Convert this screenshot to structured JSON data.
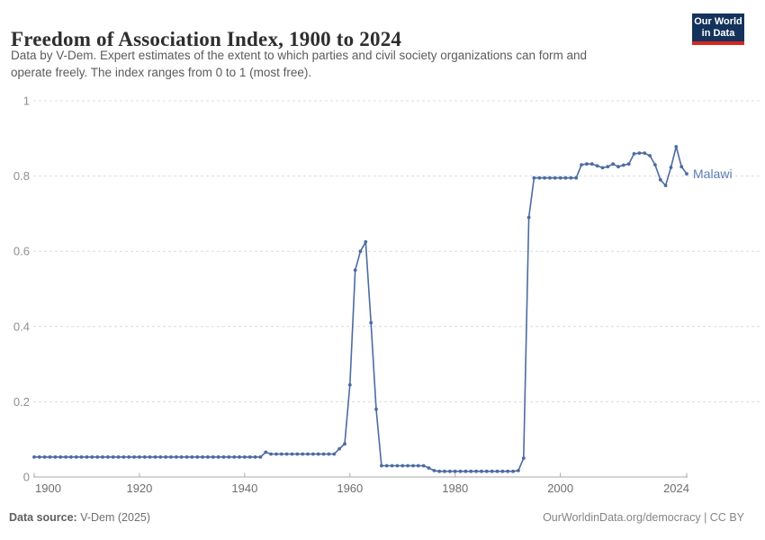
{
  "header": {
    "title": "Freedom of Association Index, 1900 to 2024",
    "subtitle_line1": "Data by V-Dem. Expert estimates of the extent to which parties and civil society organizations can form and",
    "subtitle_line2": "operate freely. The index ranges from 0 to 1 (most free).",
    "logo": {
      "line1": "Our World",
      "line2": "in Data"
    }
  },
  "footer": {
    "source_label": "Data source:",
    "source_value": " V-Dem (2025)",
    "right_text": "OurWorldinData.org/democracy | CC BY"
  },
  "colors": {
    "line": "#4c6ba3",
    "entity_label": "#5b7db4",
    "logo_bg": "#14335c",
    "logo_stripe": "#d7271d",
    "logo_text": "#ffffff",
    "grid": "#dcdcdc",
    "axis": "#a9a9a9",
    "x_tick_label": "#6e6e6e",
    "y_tick_label": "#8f8f8f"
  },
  "chart_data": {
    "type": "line",
    "title": "Freedom of Association Index, 1900 to 2024",
    "xlabel": "",
    "ylabel": "",
    "xlim": [
      1900,
      2024
    ],
    "ylim": [
      0,
      1
    ],
    "xticks": [
      1900,
      1920,
      1940,
      1960,
      1980,
      2000,
      2024
    ],
    "yticks": [
      0,
      0.2,
      0.4,
      0.6,
      0.8,
      1
    ],
    "ytick_labels": [
      "0",
      "0.2",
      "0.4",
      "0.6",
      "0.8",
      "1"
    ],
    "grid": "horizontal-dashed",
    "legend_position": "label-at-line-end",
    "series": [
      {
        "name": "Malawi",
        "color": "#4c6ba3",
        "points": [
          [
            1900,
            0.053
          ],
          [
            1901,
            0.053
          ],
          [
            1902,
            0.053
          ],
          [
            1903,
            0.053
          ],
          [
            1904,
            0.053
          ],
          [
            1905,
            0.053
          ],
          [
            1906,
            0.053
          ],
          [
            1907,
            0.053
          ],
          [
            1908,
            0.053
          ],
          [
            1909,
            0.053
          ],
          [
            1910,
            0.053
          ],
          [
            1911,
            0.053
          ],
          [
            1912,
            0.053
          ],
          [
            1913,
            0.053
          ],
          [
            1914,
            0.053
          ],
          [
            1915,
            0.053
          ],
          [
            1916,
            0.053
          ],
          [
            1917,
            0.053
          ],
          [
            1918,
            0.053
          ],
          [
            1919,
            0.053
          ],
          [
            1920,
            0.053
          ],
          [
            1921,
            0.053
          ],
          [
            1922,
            0.053
          ],
          [
            1923,
            0.053
          ],
          [
            1924,
            0.053
          ],
          [
            1925,
            0.053
          ],
          [
            1926,
            0.053
          ],
          [
            1927,
            0.053
          ],
          [
            1928,
            0.053
          ],
          [
            1929,
            0.053
          ],
          [
            1930,
            0.053
          ],
          [
            1931,
            0.053
          ],
          [
            1932,
            0.053
          ],
          [
            1933,
            0.053
          ],
          [
            1934,
            0.053
          ],
          [
            1935,
            0.053
          ],
          [
            1936,
            0.053
          ],
          [
            1937,
            0.053
          ],
          [
            1938,
            0.053
          ],
          [
            1939,
            0.053
          ],
          [
            1940,
            0.053
          ],
          [
            1941,
            0.053
          ],
          [
            1942,
            0.053
          ],
          [
            1943,
            0.053
          ],
          [
            1944,
            0.066
          ],
          [
            1945,
            0.061
          ],
          [
            1946,
            0.061
          ],
          [
            1947,
            0.061
          ],
          [
            1948,
            0.061
          ],
          [
            1949,
            0.061
          ],
          [
            1950,
            0.061
          ],
          [
            1951,
            0.061
          ],
          [
            1952,
            0.061
          ],
          [
            1953,
            0.061
          ],
          [
            1954,
            0.061
          ],
          [
            1955,
            0.061
          ],
          [
            1956,
            0.061
          ],
          [
            1957,
            0.061
          ],
          [
            1958,
            0.075
          ],
          [
            1959,
            0.088
          ],
          [
            1960,
            0.245
          ],
          [
            1961,
            0.55
          ],
          [
            1962,
            0.6
          ],
          [
            1963,
            0.625
          ],
          [
            1964,
            0.41
          ],
          [
            1965,
            0.18
          ],
          [
            1966,
            0.03
          ],
          [
            1967,
            0.03
          ],
          [
            1968,
            0.03
          ],
          [
            1969,
            0.03
          ],
          [
            1970,
            0.03
          ],
          [
            1971,
            0.03
          ],
          [
            1972,
            0.03
          ],
          [
            1973,
            0.03
          ],
          [
            1974,
            0.03
          ],
          [
            1975,
            0.024
          ],
          [
            1976,
            0.017
          ],
          [
            1977,
            0.015
          ],
          [
            1978,
            0.015
          ],
          [
            1979,
            0.015
          ],
          [
            1980,
            0.015
          ],
          [
            1981,
            0.015
          ],
          [
            1982,
            0.015
          ],
          [
            1983,
            0.015
          ],
          [
            1984,
            0.015
          ],
          [
            1985,
            0.015
          ],
          [
            1986,
            0.015
          ],
          [
            1987,
            0.015
          ],
          [
            1988,
            0.015
          ],
          [
            1989,
            0.015
          ],
          [
            1990,
            0.015
          ],
          [
            1991,
            0.015
          ],
          [
            1992,
            0.017
          ],
          [
            1993,
            0.05
          ],
          [
            1994,
            0.69
          ],
          [
            1995,
            0.795
          ],
          [
            1996,
            0.795
          ],
          [
            1997,
            0.795
          ],
          [
            1998,
            0.795
          ],
          [
            1999,
            0.795
          ],
          [
            2000,
            0.795
          ],
          [
            2001,
            0.795
          ],
          [
            2002,
            0.795
          ],
          [
            2003,
            0.795
          ],
          [
            2004,
            0.83
          ],
          [
            2005,
            0.832
          ],
          [
            2006,
            0.832
          ],
          [
            2007,
            0.827
          ],
          [
            2008,
            0.822
          ],
          [
            2009,
            0.825
          ],
          [
            2010,
            0.832
          ],
          [
            2011,
            0.825
          ],
          [
            2012,
            0.829
          ],
          [
            2013,
            0.832
          ],
          [
            2014,
            0.859
          ],
          [
            2015,
            0.861
          ],
          [
            2016,
            0.861
          ],
          [
            2017,
            0.854
          ],
          [
            2018,
            0.83
          ],
          [
            2019,
            0.79
          ],
          [
            2020,
            0.775
          ],
          [
            2021,
            0.823
          ],
          [
            2022,
            0.878
          ],
          [
            2023,
            0.825
          ],
          [
            2024,
            0.806
          ]
        ]
      }
    ]
  }
}
